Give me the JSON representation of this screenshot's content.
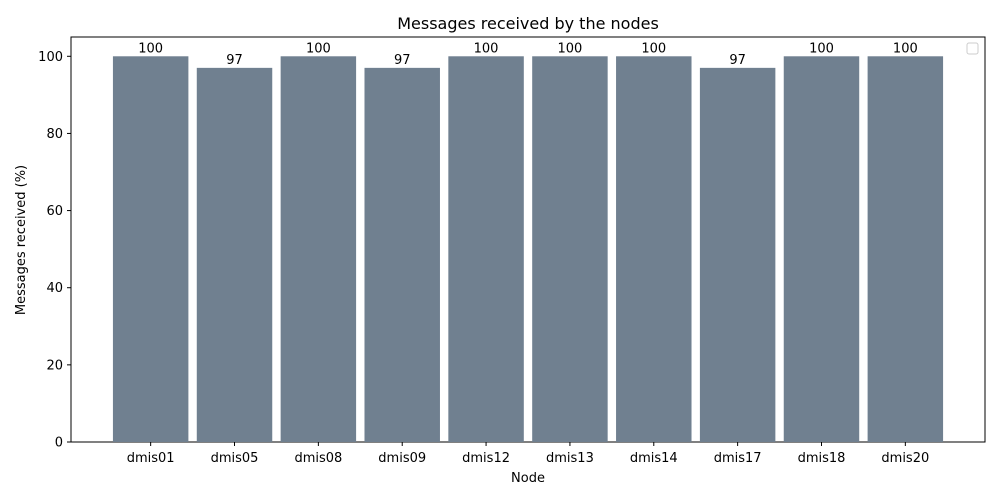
{
  "chart_data": {
    "type": "bar",
    "title": "Messages received by the nodes",
    "xlabel": "Node",
    "ylabel": "Messages received (%)",
    "categories": [
      "dmis01",
      "dmis05",
      "dmis08",
      "dmis09",
      "dmis12",
      "dmis13",
      "dmis14",
      "dmis17",
      "dmis18",
      "dmis20"
    ],
    "values": [
      100,
      97,
      100,
      97,
      100,
      100,
      100,
      97,
      100,
      100
    ],
    "ylim": [
      0,
      105
    ],
    "yticks": [
      0,
      20,
      40,
      60,
      80,
      100
    ],
    "bar_color": "#708090",
    "grid": false,
    "legend": {
      "placement": "top-right",
      "entries": []
    }
  }
}
